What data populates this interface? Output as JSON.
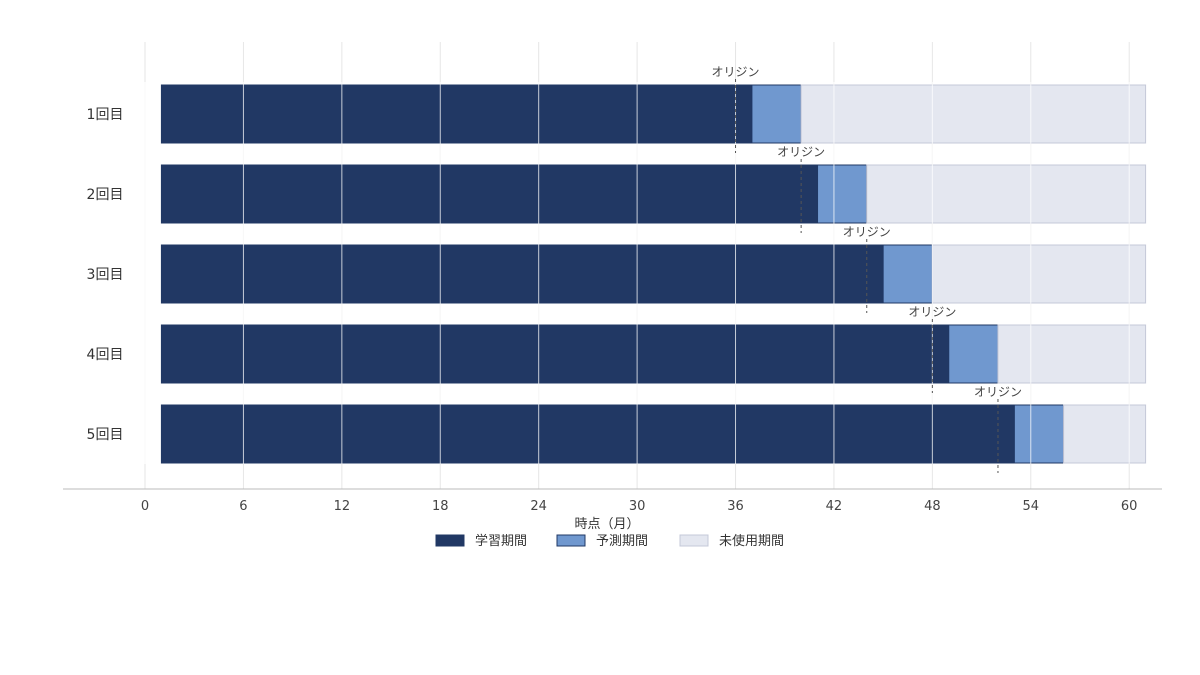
{
  "chart_data": {
    "type": "bar",
    "orientation": "horizontal",
    "stacked": true,
    "categories": [
      "1回目",
      "2回目",
      "3回目",
      "4回目",
      "5回目"
    ],
    "segments": [
      {
        "name": "学習期間",
        "starts": [
          1,
          1,
          1,
          1,
          1
        ],
        "ends": [
          37,
          41,
          45,
          49,
          53
        ],
        "color": "#213864"
      },
      {
        "name": "予測期間",
        "starts": [
          37,
          41,
          45,
          49,
          53
        ],
        "ends": [
          40,
          44,
          48,
          52,
          56
        ],
        "color": "#7098cf"
      },
      {
        "name": "未使用期間",
        "starts": [
          40,
          44,
          48,
          52,
          56
        ],
        "ends": [
          61,
          61,
          61,
          61,
          61
        ],
        "color": "#e4e7f0"
      }
    ],
    "origin_marker": {
      "label": "オリジン",
      "values": [
        36,
        40,
        44,
        48,
        52
      ]
    },
    "xlabel": "時点（月）",
    "ylabel": "",
    "xlim": [
      -5,
      62
    ],
    "xticks": [
      0,
      6,
      12,
      18,
      24,
      30,
      36,
      42,
      48,
      54,
      60
    ],
    "grid": "vertical",
    "legend_position": "bottom-center"
  }
}
